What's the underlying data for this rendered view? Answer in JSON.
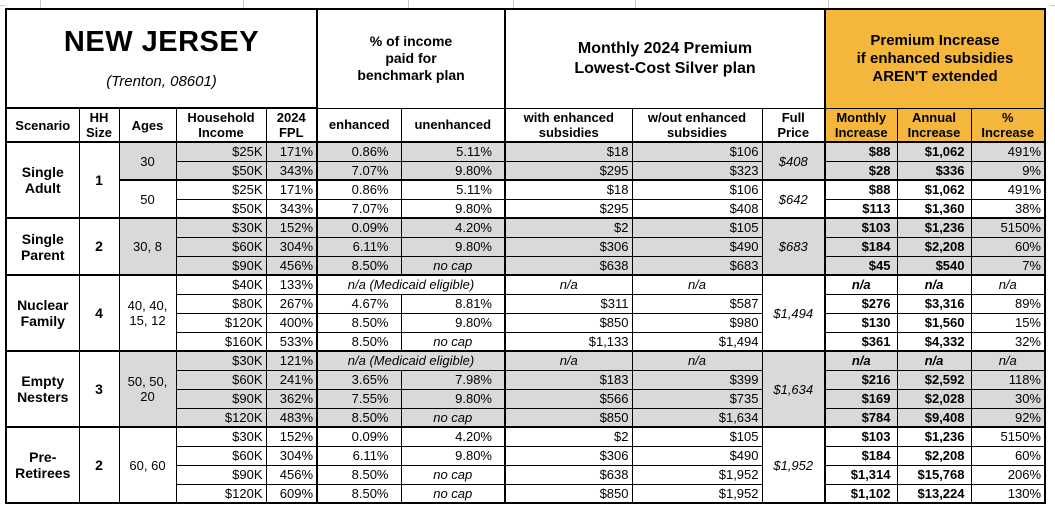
{
  "colors": {
    "highlight_orange": "#F5B63C",
    "band_gray": "#D9D9D9"
  },
  "header": {
    "state": "NEW JERSEY",
    "location": "(Trenton, 08601)",
    "benchmark_group": "% of income\npaid for\nbenchmark plan",
    "premium_group": "Monthly 2024 Premium\nLowest-Cost Silver plan",
    "increase_group": "Premium Increase\nif enhanced subsidies\nAREN'T extended",
    "columns": {
      "scenario": "Scenario",
      "hh_size": "HH\nSize",
      "ages": "Ages",
      "income": "Household\nIncome",
      "fpl": "2024\nFPL",
      "enhanced": "enhanced",
      "unenhanced": "unenhanced",
      "with_subsidies": "with enhanced\nsubsidies",
      "without_subsidies": "w/out enhanced\nsubsidies",
      "full_price": "Full\nPrice",
      "monthly_increase": "Monthly\nIncrease",
      "annual_increase": "Annual\nIncrease",
      "pct_increase": "%\nIncrease"
    }
  },
  "medicaid_note": "n/a (Medicaid eligible)",
  "na": "n/a",
  "no_cap": "no cap",
  "groups": [
    {
      "scenario": "Single Adult",
      "hh_size": "1",
      "subgroups": [
        {
          "ages": "30",
          "shaded": true,
          "full_price": "$408",
          "rows": [
            {
              "income": "$25K",
              "fpl": "171%",
              "enhanced": "0.86%",
              "unenhanced": "5.11%",
              "with_sub": "$18",
              "without_sub": "$106",
              "monthly": "$88",
              "annual": "$1,062",
              "pct": "491%"
            },
            {
              "income": "$50K",
              "fpl": "343%",
              "enhanced": "7.07%",
              "unenhanced": "9.80%",
              "with_sub": "$295",
              "without_sub": "$323",
              "monthly": "$28",
              "annual": "$336",
              "pct": "9%"
            }
          ]
        },
        {
          "ages": "50",
          "shaded": false,
          "full_price": "$642",
          "rows": [
            {
              "income": "$25K",
              "fpl": "171%",
              "enhanced": "0.86%",
              "unenhanced": "5.11%",
              "with_sub": "$18",
              "without_sub": "$106",
              "monthly": "$88",
              "annual": "$1,062",
              "pct": "491%"
            },
            {
              "income": "$50K",
              "fpl": "343%",
              "enhanced": "7.07%",
              "unenhanced": "9.80%",
              "with_sub": "$295",
              "without_sub": "$408",
              "monthly": "$113",
              "annual": "$1,360",
              "pct": "38%"
            }
          ]
        }
      ]
    },
    {
      "scenario": "Single Parent",
      "hh_size": "2",
      "subgroups": [
        {
          "ages": "30, 8",
          "shaded": true,
          "full_price": "$683",
          "rows": [
            {
              "income": "$30K",
              "fpl": "152%",
              "enhanced": "0.09%",
              "unenhanced": "4.20%",
              "with_sub": "$2",
              "without_sub": "$105",
              "monthly": "$103",
              "annual": "$1,236",
              "pct": "5150%"
            },
            {
              "income": "$60K",
              "fpl": "304%",
              "enhanced": "6.11%",
              "unenhanced": "9.80%",
              "with_sub": "$306",
              "without_sub": "$490",
              "monthly": "$184",
              "annual": "$2,208",
              "pct": "60%"
            },
            {
              "income": "$90K",
              "fpl": "456%",
              "enhanced": "8.50%",
              "unenhanced": "no cap",
              "with_sub": "$638",
              "without_sub": "$683",
              "monthly": "$45",
              "annual": "$540",
              "pct": "7%"
            }
          ]
        }
      ]
    },
    {
      "scenario": "Nuclear Family",
      "hh_size": "4",
      "subgroups": [
        {
          "ages": "40, 40, 15, 12",
          "shaded": false,
          "full_price": "$1,494",
          "rows": [
            {
              "income": "$40K",
              "fpl": "133%",
              "medicaid": true,
              "with_sub": "n/a",
              "without_sub": "n/a",
              "monthly": "n/a",
              "annual": "n/a",
              "pct": "n/a"
            },
            {
              "income": "$80K",
              "fpl": "267%",
              "enhanced": "4.67%",
              "unenhanced": "8.81%",
              "with_sub": "$311",
              "without_sub": "$587",
              "monthly": "$276",
              "annual": "$3,316",
              "pct": "89%"
            },
            {
              "income": "$120K",
              "fpl": "400%",
              "enhanced": "8.50%",
              "unenhanced": "9.80%",
              "with_sub": "$850",
              "without_sub": "$980",
              "monthly": "$130",
              "annual": "$1,560",
              "pct": "15%"
            },
            {
              "income": "$160K",
              "fpl": "533%",
              "enhanced": "8.50%",
              "unenhanced": "no cap",
              "with_sub": "$1,133",
              "without_sub": "$1,494",
              "monthly": "$361",
              "annual": "$4,332",
              "pct": "32%"
            }
          ]
        }
      ]
    },
    {
      "scenario": "Empty Nesters",
      "hh_size": "3",
      "subgroups": [
        {
          "ages": "50, 50, 20",
          "shaded": true,
          "full_price": "$1,634",
          "rows": [
            {
              "income": "$30K",
              "fpl": "121%",
              "medicaid": true,
              "with_sub": "n/a",
              "without_sub": "n/a",
              "monthly": "n/a",
              "annual": "n/a",
              "pct": "n/a"
            },
            {
              "income": "$60K",
              "fpl": "241%",
              "enhanced": "3.65%",
              "unenhanced": "7.98%",
              "with_sub": "$183",
              "without_sub": "$399",
              "monthly": "$216",
              "annual": "$2,592",
              "pct": "118%"
            },
            {
              "income": "$90K",
              "fpl": "362%",
              "enhanced": "7.55%",
              "unenhanced": "9.80%",
              "with_sub": "$566",
              "without_sub": "$735",
              "monthly": "$169",
              "annual": "$2,028",
              "pct": "30%"
            },
            {
              "income": "$120K",
              "fpl": "483%",
              "enhanced": "8.50%",
              "unenhanced": "no cap",
              "with_sub": "$850",
              "without_sub": "$1,634",
              "monthly": "$784",
              "annual": "$9,408",
              "pct": "92%"
            }
          ]
        }
      ]
    },
    {
      "scenario": "Pre-Retirees",
      "hh_size": "2",
      "subgroups": [
        {
          "ages": "60, 60",
          "shaded": false,
          "full_price": "$1,952",
          "rows": [
            {
              "income": "$30K",
              "fpl": "152%",
              "enhanced": "0.09%",
              "unenhanced": "4.20%",
              "with_sub": "$2",
              "without_sub": "$105",
              "monthly": "$103",
              "annual": "$1,236",
              "pct": "5150%"
            },
            {
              "income": "$60K",
              "fpl": "304%",
              "enhanced": "6.11%",
              "unenhanced": "9.80%",
              "with_sub": "$306",
              "without_sub": "$490",
              "monthly": "$184",
              "annual": "$2,208",
              "pct": "60%"
            },
            {
              "income": "$90K",
              "fpl": "456%",
              "enhanced": "8.50%",
              "unenhanced": "no cap",
              "with_sub": "$638",
              "without_sub": "$1,952",
              "monthly": "$1,314",
              "annual": "$15,768",
              "pct": "206%"
            },
            {
              "income": "$120K",
              "fpl": "609%",
              "enhanced": "8.50%",
              "unenhanced": "no cap",
              "with_sub": "$850",
              "without_sub": "$1,952",
              "monthly": "$1,102",
              "annual": "$13,224",
              "pct": "130%"
            }
          ]
        }
      ]
    }
  ]
}
